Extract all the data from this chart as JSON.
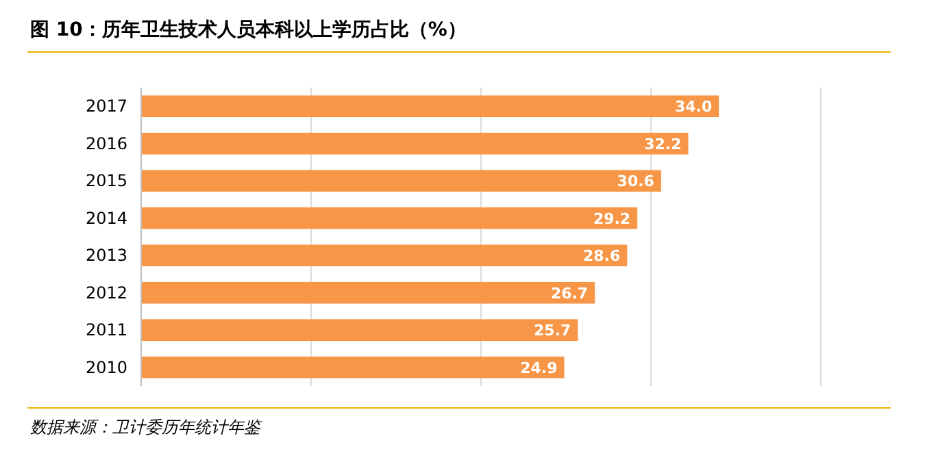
{
  "chart_data": {
    "type": "bar",
    "orientation": "horizontal",
    "title": "图 10：历年卫生技术人员本科以上学历占比（%）",
    "categories": [
      "2017",
      "2016",
      "2015",
      "2014",
      "2013",
      "2012",
      "2011",
      "2010"
    ],
    "values": [
      34.0,
      32.2,
      30.6,
      29.2,
      28.6,
      26.7,
      25.7,
      24.9
    ],
    "value_labels": [
      "34.0",
      "32.2",
      "30.6",
      "29.2",
      "28.6",
      "26.7",
      "25.7",
      "24.9"
    ],
    "color": "#f79646",
    "xlim": [
      0,
      40
    ],
    "xticks": [
      {
        "value": 0,
        "label": null
      },
      {
        "value": 10,
        "label": null
      },
      {
        "value": 20,
        "label": null
      },
      {
        "value": 30,
        "label": null
      },
      {
        "value": 40,
        "label": null
      }
    ],
    "grid": "x",
    "tick_labels": "y",
    "annotations": [
      "数据来源：卫计委历年统计年鉴"
    ]
  }
}
